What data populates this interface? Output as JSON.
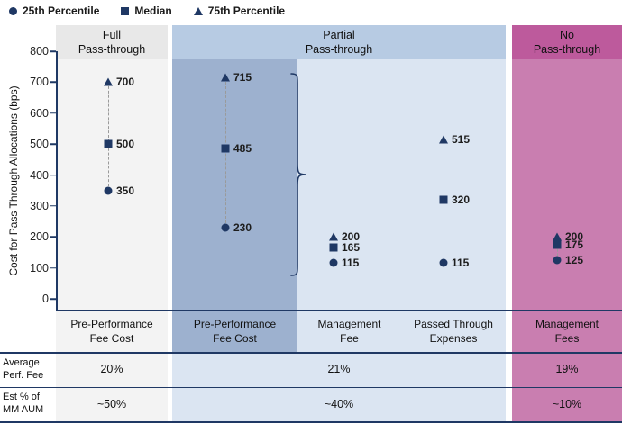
{
  "colors": {
    "navy": "#1f3864",
    "grayHeader": "#e8e8e8",
    "grayBody": "#f3f3f3",
    "blueHeader": "#b7cbe3",
    "blueBody": "#dbe5f2",
    "blueHi": "#9db1cf",
    "pinkHeader": "#bd5a9c",
    "pinkBody": "#c97eb0"
  },
  "legend": [
    {
      "marker": "circle",
      "label": "25th Percentile"
    },
    {
      "marker": "square",
      "label": "Median"
    },
    {
      "marker": "triangle",
      "label": "75th Percentile"
    }
  ],
  "chart_data": {
    "type": "scatter",
    "ylabel": "Cost for Pass Through Allocations (bps)",
    "ylim": [
      0,
      800
    ],
    "yticks": [
      0,
      100,
      200,
      300,
      400,
      500,
      600,
      700,
      800
    ],
    "groups": [
      {
        "header": [
          "Full",
          "Pass-through"
        ],
        "columns": [
          {
            "label": [
              "Pre-Performance",
              "Fee Cost"
            ],
            "p25": 350,
            "median": 500,
            "p75": 700
          }
        ]
      },
      {
        "header": [
          "Partial",
          "Pass-through"
        ],
        "columns": [
          {
            "label": [
              "Pre-Performance",
              "Fee Cost"
            ],
            "p25": 230,
            "median": 485,
            "p75": 715,
            "highlight": true
          },
          {
            "label": [
              "Management",
              "Fee"
            ],
            "p25": 115,
            "median": 165,
            "p75": 200
          },
          {
            "label": [
              "Passed Through",
              "Expenses"
            ],
            "p25": 115,
            "median": 320,
            "p75": 515
          }
        ]
      },
      {
        "header": [
          "No",
          "Pass-through"
        ],
        "columns": [
          {
            "label": [
              "Management",
              "Fees"
            ],
            "p25": 125,
            "median": 175,
            "p75": 200
          }
        ]
      }
    ],
    "table": {
      "rows": [
        {
          "label": [
            "Average",
            "Perf. Fee"
          ],
          "values": [
            "20%",
            "21%",
            "19%"
          ]
        },
        {
          "label": [
            "Est % of",
            "MM AUM"
          ],
          "values": [
            "~50%",
            "~40%",
            "~10%"
          ]
        }
      ]
    }
  }
}
